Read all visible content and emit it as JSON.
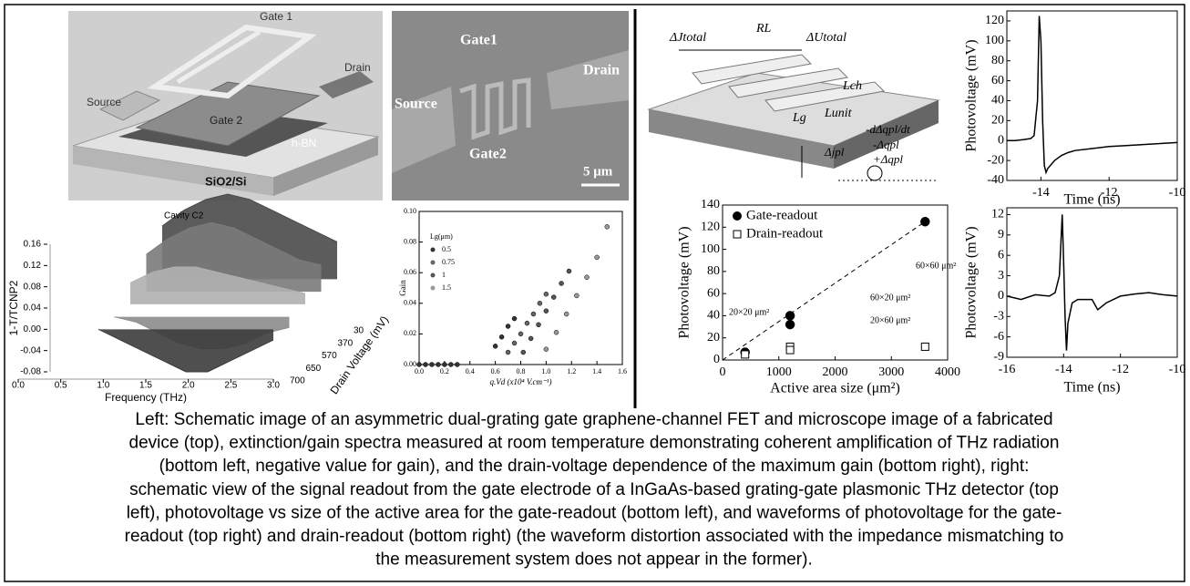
{
  "schematic_left": {
    "gate1": "Gate 1",
    "source": "Source",
    "drain": "Drain",
    "gate2": "Gate 2",
    "hbn": "h-BN",
    "substrate": "SiO2/Si"
  },
  "micrograph": {
    "gate1": "Gate1",
    "drain": "Drain",
    "source": "Source",
    "gate2": "Gate2",
    "scale": "5 μm"
  },
  "schematic_right": {
    "delta_j_total": "ΔJtotal",
    "rl": "RL",
    "delta_u_total": "ΔUtotal",
    "lch": "Lch",
    "lg": "Lg",
    "lunit": "Lunit",
    "dq_dt": "-dΔqpl/dt",
    "minus_q": "-Δqpl",
    "plus_q": "+Δqpl",
    "delta_j_pl": "Δjpl"
  },
  "chart_data": [
    {
      "type": "area3d",
      "annotation": "Cavity C2",
      "xlabel": "Frequency (THz)",
      "ylabel": "1-T/TCNP2",
      "depth_label": "Drain Voltage (mV)",
      "depth_categories": [
        "30",
        "370",
        "570",
        "650",
        "700"
      ],
      "x": [
        0.6,
        0.9,
        1.2,
        1.5,
        1.8,
        2.1,
        2.4,
        2.7,
        3.0
      ],
      "series": [
        {
          "color": "#4a4a4a",
          "values": [
            0.1,
            0.13,
            0.15,
            0.16,
            0.15,
            0.13,
            0.11,
            0.09,
            0.07
          ]
        },
        {
          "color": "#7a7a7a",
          "values": [
            0.07,
            0.1,
            0.12,
            0.13,
            0.12,
            0.1,
            0.08,
            0.06,
            0.05
          ]
        },
        {
          "color": "#b0b0b0",
          "values": [
            0.04,
            0.06,
            0.07,
            0.07,
            0.06,
            0.05,
            0.04,
            0.03,
            0.02
          ]
        },
        {
          "color": "#8c8c8c",
          "values": [
            0.0,
            -0.01,
            -0.03,
            -0.05,
            -0.06,
            -0.06,
            -0.05,
            -0.03,
            -0.02
          ]
        },
        {
          "color": "#3c3c3c",
          "values": [
            0.0,
            -0.02,
            -0.04,
            -0.06,
            -0.08,
            -0.08,
            -0.06,
            -0.04,
            -0.02
          ]
        }
      ],
      "xlim": [
        0,
        3
      ],
      "xticks": [
        {
          "value": 0,
          "label": "0.0"
        },
        {
          "value": 0.5,
          "label": "0.5"
        },
        {
          "value": 1,
          "label": "1.0"
        },
        {
          "value": 1.5,
          "label": "1.5"
        },
        {
          "value": 2,
          "label": "2.0"
        },
        {
          "value": 2.5,
          "label": "2.5"
        },
        {
          "value": 3,
          "label": "3.0"
        }
      ],
      "ylim": [
        -0.08,
        0.16
      ],
      "yticks": [
        0.16,
        0.12,
        0.08,
        0.04,
        {
          "value": 0,
          "label": "0.00"
        },
        -0.04,
        -0.08
      ]
    },
    {
      "type": "scatter",
      "xlabel": "q.Vd (x10⁴ V.cm⁻¹)",
      "ylabel": "Gain",
      "legend_title": "Lg(μm)",
      "legend": "top-left",
      "series": [
        {
          "name": "0.5",
          "color": "#333333",
          "x": [
            0,
            0.05,
            0.1,
            0.15,
            0.2,
            0.25,
            0.3,
            0.6,
            0.65,
            0.7,
            0.75
          ],
          "values": [
            0,
            0,
            0,
            0,
            0,
            0,
            0,
            0.012,
            0.018,
            0.025,
            0.03
          ]
        },
        {
          "name": "0.75",
          "color": "#666666",
          "x": [
            0.7,
            0.75,
            0.8,
            0.85,
            0.9,
            0.95,
            1.0
          ],
          "values": [
            0.008,
            0.014,
            0.02,
            0.027,
            0.033,
            0.04,
            0.046
          ]
        },
        {
          "name": "1",
          "color": "#555555",
          "x": [
            0.82,
            0.88,
            0.94,
            1.0,
            1.06,
            1.12,
            1.18
          ],
          "values": [
            0.008,
            0.017,
            0.026,
            0.035,
            0.044,
            0.053,
            0.061
          ]
        },
        {
          "name": "1.5",
          "color": "#999999",
          "x": [
            1.0,
            1.08,
            1.16,
            1.24,
            1.32,
            1.4,
            1.48
          ],
          "values": [
            0.01,
            0.021,
            0.033,
            0.045,
            0.057,
            0.07,
            0.09
          ]
        }
      ],
      "xlim": [
        0,
        1.6
      ],
      "xticks": [
        {
          "value": 0,
          "label": "0.0"
        },
        0.2,
        0.4,
        0.6,
        0.8,
        {
          "value": 1,
          "label": "1.0"
        },
        1.2,
        1.4,
        1.6
      ],
      "ylim": [
        0,
        0.1
      ],
      "yticks": [
        {
          "value": 0,
          "label": "0.00"
        },
        0.02,
        0.04,
        0.06,
        0.08,
        {
          "value": 0.1,
          "label": "0.10"
        }
      ]
    },
    {
      "type": "scatter",
      "xlabel": "Active area size (μm²)",
      "ylabel": "Photovoltage (mV)",
      "legend": "top-left",
      "series": [
        {
          "name": "Gate-readout",
          "color": "#000000",
          "marker": "circle",
          "x": [
            400,
            1200,
            1200,
            3600
          ],
          "values": [
            7,
            40,
            32,
            125
          ]
        },
        {
          "name": "Drain-readout",
          "color": "#000000",
          "marker": "square-open",
          "x": [
            400,
            1200,
            1200,
            3600
          ],
          "values": [
            5,
            12,
            9,
            12
          ]
        }
      ],
      "annotations": [
        "20×20 μm²",
        "60×20 μm²",
        "20×60 μm²",
        "60×60 μm²"
      ],
      "xlim": [
        0,
        4000
      ],
      "xticks": [
        0,
        1000,
        2000,
        3000,
        4000
      ],
      "ylim": [
        0,
        140
      ],
      "yticks": [
        0,
        20,
        40,
        60,
        80,
        100,
        120,
        140
      ]
    },
    {
      "type": "line",
      "xlabel": "Time (ns)",
      "ylabel": "Photovoltage (mV)",
      "x": [
        -15,
        -14.75,
        -14.5,
        -14.3,
        -14.2,
        -14.1,
        -14.05,
        -14.0,
        -13.95,
        -13.9,
        -13.85,
        -13.8,
        -13.6,
        -13.4,
        -13.2,
        -13,
        -12.5,
        -12,
        -11.5,
        -11,
        -10.5,
        -10
      ],
      "series": [
        {
          "color": "#000000",
          "values": [
            0,
            0,
            1,
            2,
            5,
            40,
            125,
            100,
            20,
            -25,
            -32,
            -28,
            -20,
            -15,
            -12,
            -10,
            -8,
            -6,
            -5,
            -4,
            -3,
            -2
          ]
        }
      ],
      "xlim": [
        -15,
        -10
      ],
      "xticks": [
        -14,
        -12,
        -10
      ],
      "ylim": [
        -40,
        130
      ],
      "yticks": [
        -40,
        -20,
        0,
        20,
        40,
        60,
        80,
        100,
        120
      ]
    },
    {
      "type": "line",
      "xlabel": "Time (ns)",
      "ylabel": "Photovoltage (mV)",
      "x": [
        -16,
        -15.5,
        -15,
        -14.5,
        -14.3,
        -14.15,
        -14.05,
        -14.0,
        -13.95,
        -13.9,
        -13.85,
        -13.7,
        -13.5,
        -13,
        -12.8,
        -12.5,
        -12,
        -11.5,
        -11,
        -10.5,
        -10
      ],
      "series": [
        {
          "color": "#000000",
          "values": [
            0,
            -0.5,
            0.2,
            0,
            0.5,
            3,
            12,
            5,
            -3,
            -8,
            -4,
            -1,
            -0.5,
            -0.5,
            -2,
            -1,
            0,
            0.3,
            0.5,
            0.2,
            0
          ]
        }
      ],
      "xlim": [
        -16,
        -10
      ],
      "xticks": [
        -16,
        -14,
        -12,
        -10
      ],
      "ylim": [
        -9,
        13
      ],
      "yticks": [
        -9,
        -6,
        -3,
        0,
        3,
        6,
        9,
        12
      ]
    }
  ],
  "caption_lines": [
    "Left: Schematic image of an asymmetric dual-grating gate graphene-channel FET and microscope image of a fabricated",
    "device (top), extinction/gain spectra measured at room temperature demonstrating coherent amplification of THz radiation",
    "(bottom left, negative value for gain), and the drain-voltage dependence of the maximum gain (bottom right), right:",
    "schematic view of the signal readout from the gate electrode of a InGaAs-based grating-gate plasmonic THz detector (top",
    "left), photovoltage vs size of the active area for the gate-readout (bottom left), and waveforms of photovoltage for the gate-",
    "readout (top right) and drain-readout (bottom right) (the waveform distortion associated with the impedance mismatching to",
    "the measurement system does not appear in the former)."
  ]
}
